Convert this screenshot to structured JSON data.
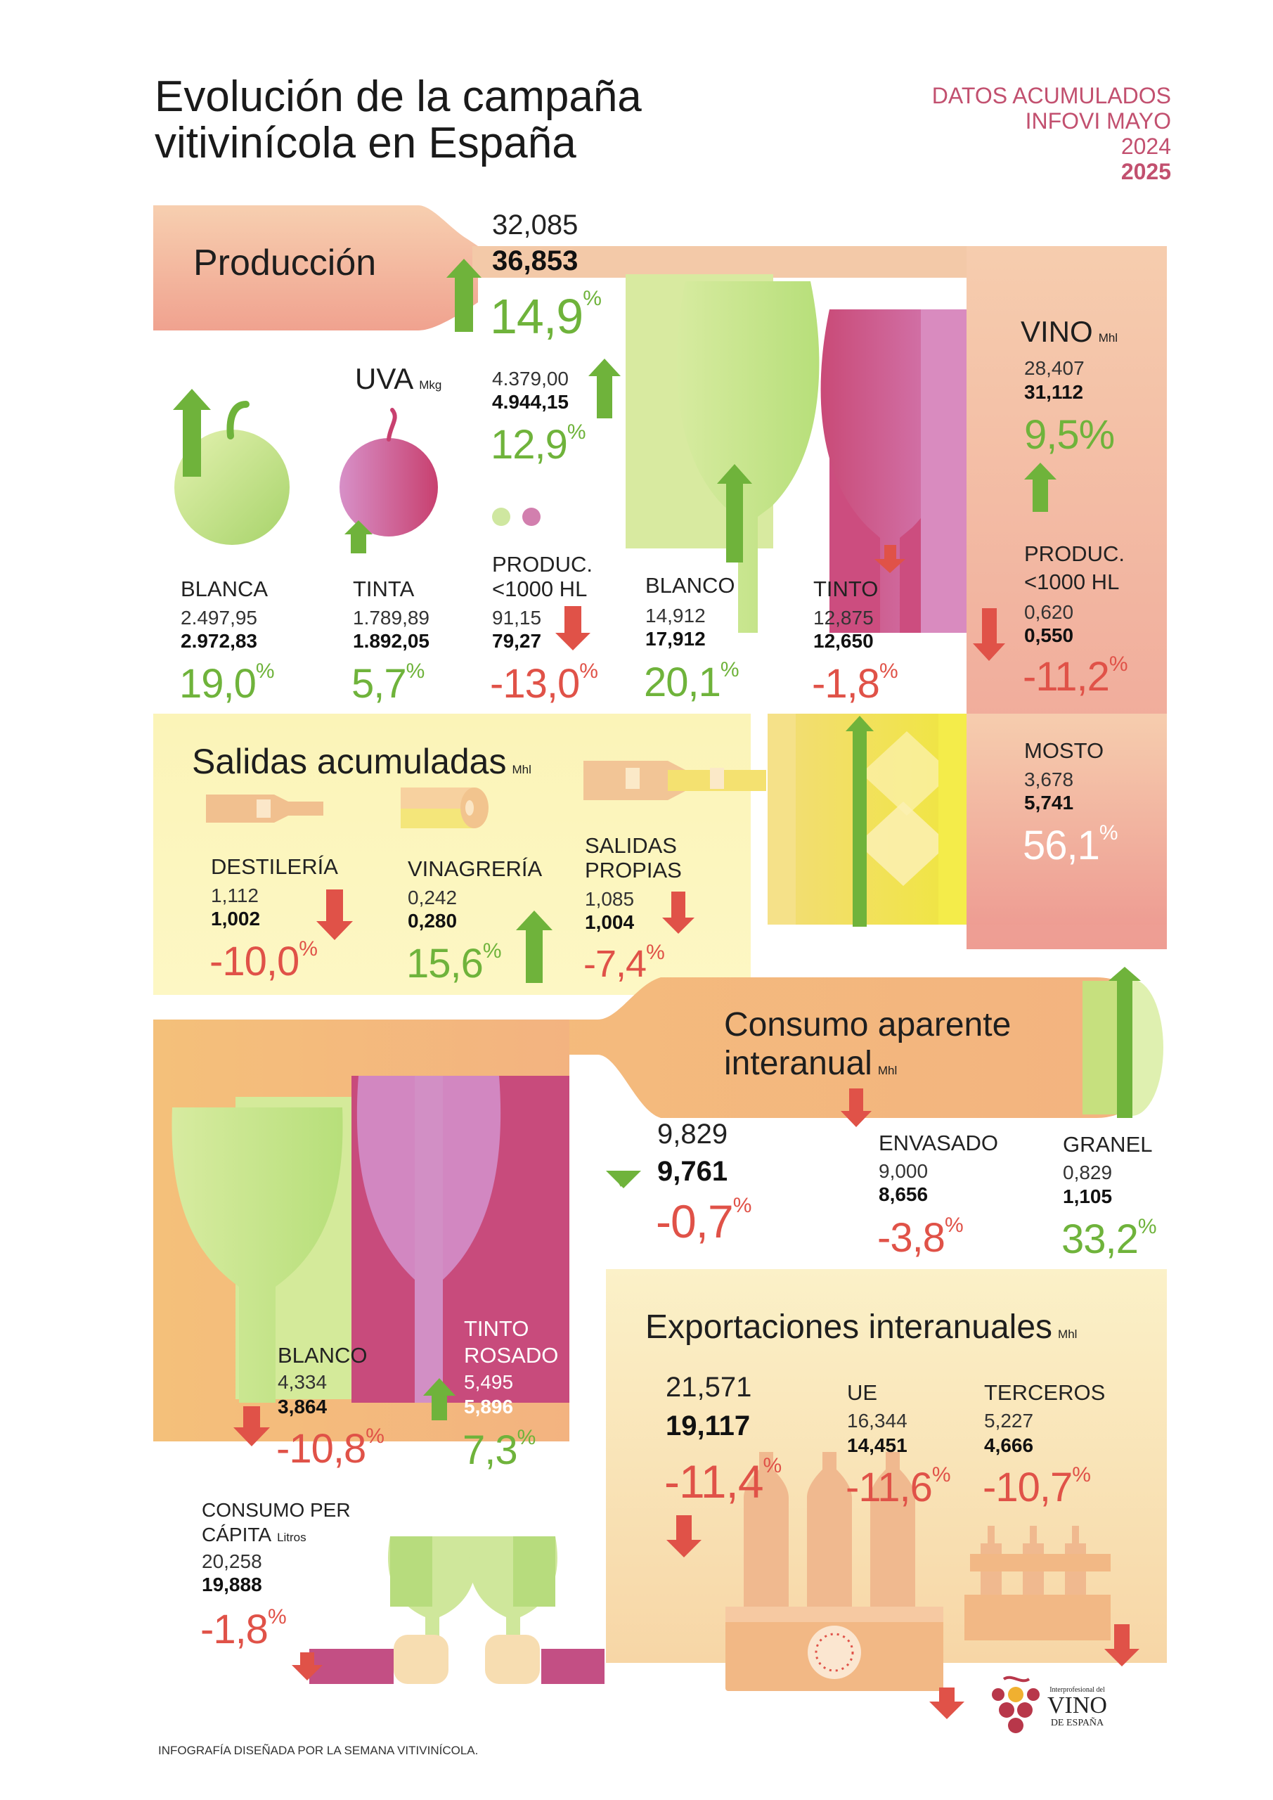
{
  "title": "Evolución de la campaña vitivinícola en España",
  "legend": {
    "line1": "DATOS ACUMULADOS",
    "line2": "INFOVI MAYO",
    "year_prev": "2024",
    "year_curr": "2025"
  },
  "colors": {
    "green": "#6fb33b",
    "red": "#e05248",
    "pink": "#c2506f"
  },
  "produccion": {
    "label": "Producción",
    "v2024": "32,085",
    "v2025": "36,853",
    "pct": "14,9",
    "pct_sign": "%"
  },
  "uva": {
    "label": "UVA",
    "unit": "Mkg",
    "v2024": "4.379,00",
    "v2025": "4.944,15",
    "pct": "12,9",
    "blanca": {
      "label": "BLANCA",
      "v2024": "2.497,95",
      "v2025": "2.972,83",
      "pct": "19,0"
    },
    "tinta": {
      "label": "TINTA",
      "v2024": "1.789,89",
      "v2025": "1.892,05",
      "pct": "5,7"
    },
    "produc": {
      "label1": "PRODUC.",
      "label2": "<1000 HL",
      "v2024": "91,15",
      "v2025": "79,27",
      "pct": "-13,0"
    }
  },
  "vino": {
    "label": "VINO",
    "unit": "Mhl",
    "v2024": "28,407",
    "v2025": "31,112",
    "pct": "9,5",
    "blanco": {
      "label": "BLANCO",
      "v2024": "14,912",
      "v2025": "17,912",
      "pct": "20,1"
    },
    "tinto": {
      "label": "TINTO",
      "v2024": "12,875",
      "v2025": "12,650",
      "pct": "-1,8"
    },
    "produc": {
      "label1": "PRODUC.",
      "label2": "<1000 HL",
      "v2024": "0,620",
      "v2025": "0,550",
      "pct": "-11,2"
    }
  },
  "mosto": {
    "label": "MOSTO",
    "v2024": "3,678",
    "v2025": "5,741",
    "pct": "56,1"
  },
  "salidas": {
    "label": "Salidas acumuladas",
    "unit": "Mhl",
    "destileria": {
      "label": "DESTILERÍA",
      "v2024": "1,112",
      "v2025": "1,002",
      "pct": "-10,0"
    },
    "vinagreria": {
      "label": "VINAGRERÍA",
      "v2024": "0,242",
      "v2025": "0,280",
      "pct": "15,6"
    },
    "propias": {
      "label1": "SALIDAS",
      "label2": "PROPIAS",
      "v2024": "1,085",
      "v2025": "1,004",
      "pct": "-7,4"
    }
  },
  "consumo": {
    "label1": "Consumo aparente",
    "label2": "interanual",
    "unit": "Mhl",
    "v2024": "9,829",
    "v2025": "9,761",
    "pct": "-0,7",
    "envasado": {
      "label": "ENVASADO",
      "v2024": "9,000",
      "v2025": "8,656",
      "pct": "-3,8"
    },
    "granel": {
      "label": "GRANEL",
      "v2024": "0,829",
      "v2025": "1,105",
      "pct": "33,2"
    },
    "blanco": {
      "label": "BLANCO",
      "v2024": "4,334",
      "v2025": "3,864",
      "pct": "-10,8"
    },
    "tinto": {
      "label1": "TINTO",
      "label2": "ROSADO",
      "v2024": "5,495",
      "v2025": "5,896",
      "pct": "7,3"
    },
    "per_capita": {
      "label1": "CONSUMO PER",
      "label2": "CÁPITA",
      "unit": "Litros",
      "v2024": "20,258",
      "v2025": "19,888",
      "pct": "-1,8"
    }
  },
  "exportaciones": {
    "label": "Exportaciones interanuales",
    "unit": "Mhl",
    "v2024": "21,571",
    "v2025": "19,117",
    "pct": "-11,4",
    "ue": {
      "label": "UE",
      "v2024": "16,344",
      "v2025": "14,451",
      "pct": "-11,6"
    },
    "terceros": {
      "label": "TERCEROS",
      "v2024": "5,227",
      "v2025": "4,666",
      "pct": "-10,7"
    }
  },
  "footer": {
    "credit": "INFOGRAFÍA DISEÑADA POR LA SEMANA VITIVINÍCOLA."
  },
  "logo": {
    "top": "Interprofesional del",
    "main": "VINO",
    "bottom": "DE ESPAÑA"
  }
}
